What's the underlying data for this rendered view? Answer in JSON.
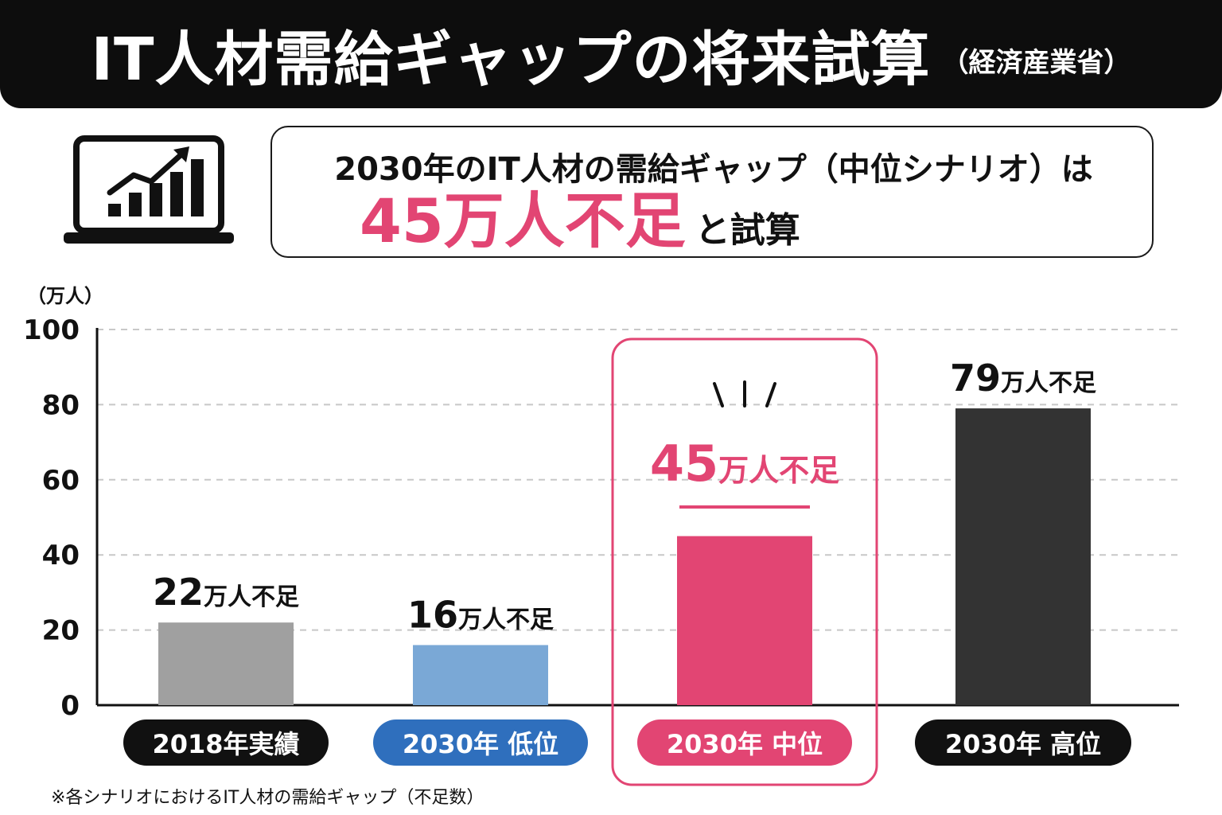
{
  "header": {
    "title": "IT人材需給ギャップの将来試算",
    "source": "（経済産業省）"
  },
  "callout": {
    "line1": "2030年のIT人材の需給ギャップ（中位シナリオ）は",
    "highlight": "45万人不足",
    "tail": "と試算"
  },
  "icon": "laptop-chart-icon",
  "colors": {
    "accent": "#e24573",
    "dark": "#0d0d0d"
  },
  "footnote": "※各シナリオにおけるIT人材の需給ギャップ（不足数）",
  "chart_data": {
    "type": "bar",
    "ylabel": "（万人）",
    "ylim": [
      0,
      100
    ],
    "yticks": [
      0,
      20,
      40,
      60,
      80,
      100
    ],
    "grid": true,
    "categories": [
      "2018年実績",
      "2030年 低位",
      "2030年 中位",
      "2030年 高位"
    ],
    "values": [
      22,
      16,
      45,
      79
    ],
    "value_labels": [
      "22",
      "16",
      "45",
      "79"
    ],
    "label_unit": "万人不足",
    "bar_colors": [
      "#a0a0a0",
      "#7aa8d6",
      "#e24573",
      "#333333"
    ],
    "pill_colors": [
      "#111111",
      "#2f6fbd",
      "#e24573",
      "#111111"
    ],
    "highlighted_index": 2
  }
}
